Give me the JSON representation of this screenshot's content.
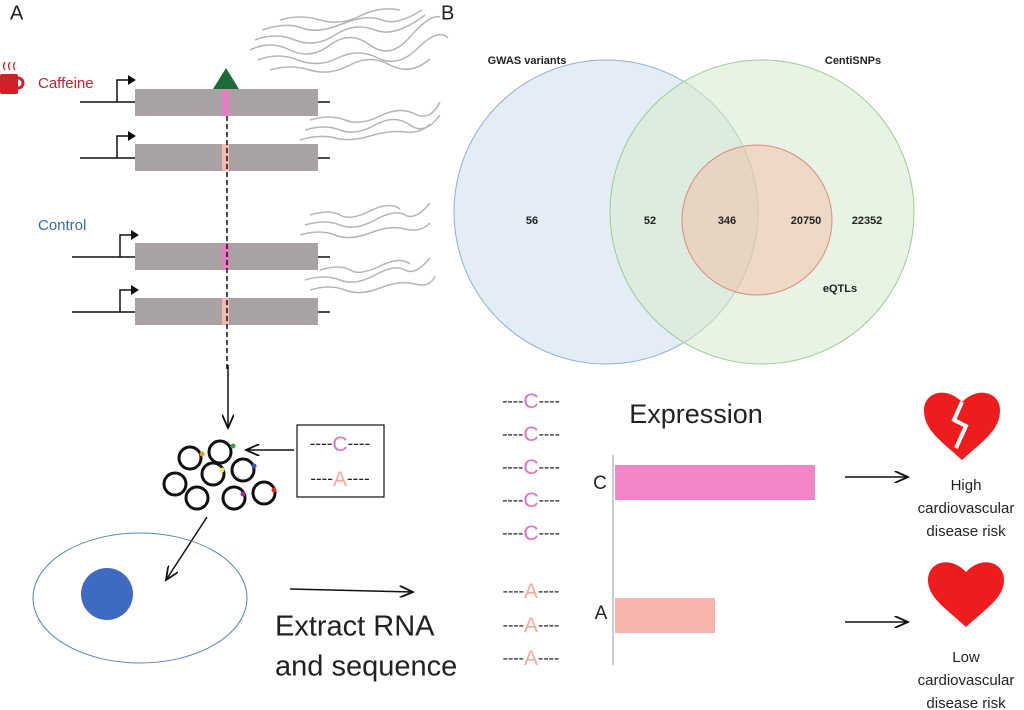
{
  "panel_a": {
    "label": "A",
    "treatments": [
      "Caffeine",
      "Control"
    ],
    "construct_box": [
      "----C----",
      "----A----"
    ],
    "step_lines": [
      "Extract RNA",
      "and sequence"
    ]
  },
  "panel_b": {
    "label": "B",
    "venn": {
      "sets": [
        "GWAS variants",
        "CentiSNPs",
        "eQTLs"
      ],
      "regions": [
        "56",
        "52",
        "346",
        "20750",
        "22352"
      ]
    },
    "reads": [
      "----C----",
      "----C----",
      "----C----",
      "----C----",
      "----C----",
      "----A----",
      "----A----",
      "----A----"
    ],
    "expression": {
      "title": "Expression",
      "alleles": [
        "C",
        "A"
      ]
    },
    "outcomes": [
      [
        "High",
        "cardiovascular",
        "disease risk"
      ],
      [
        "Low",
        "cardiovascular",
        "disease risk"
      ]
    ]
  }
}
